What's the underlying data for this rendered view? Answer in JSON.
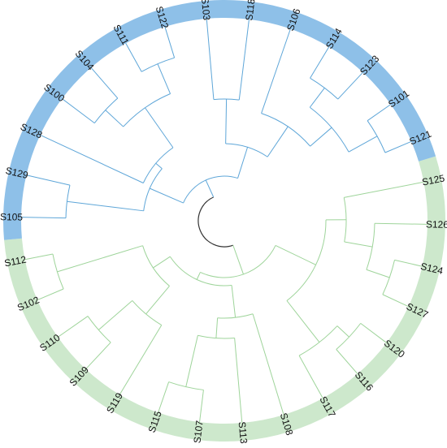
{
  "tree": {
    "colors": {
      "blue_band": "#8ec0e8",
      "green_band": "#cde8cc",
      "blue_branch": "#5ea6d8",
      "green_branch": "#9ed49a",
      "root_branch": "#333333"
    },
    "leaves": [
      {
        "label": "S125",
        "group": "green"
      },
      {
        "label": "S126",
        "group": "green"
      },
      {
        "label": "S124",
        "group": "green"
      },
      {
        "label": "S127",
        "group": "green"
      },
      {
        "label": "S120",
        "group": "green"
      },
      {
        "label": "S116",
        "group": "green"
      },
      {
        "label": "S117",
        "group": "green"
      },
      {
        "label": "S108",
        "group": "green"
      },
      {
        "label": "S113",
        "group": "green"
      },
      {
        "label": "S107",
        "group": "green"
      },
      {
        "label": "S115",
        "group": "green"
      },
      {
        "label": "S119",
        "group": "green"
      },
      {
        "label": "S109",
        "group": "green"
      },
      {
        "label": "S110",
        "group": "green"
      },
      {
        "label": "S102",
        "group": "green"
      },
      {
        "label": "S112",
        "group": "green"
      },
      {
        "label": "S105",
        "group": "blue"
      },
      {
        "label": "S129",
        "group": "blue"
      },
      {
        "label": "S128",
        "group": "blue"
      },
      {
        "label": "S100",
        "group": "blue"
      },
      {
        "label": "S104",
        "group": "blue"
      },
      {
        "label": "S111",
        "group": "blue"
      },
      {
        "label": "S122",
        "group": "blue"
      },
      {
        "label": "S103",
        "group": "blue"
      },
      {
        "label": "S118",
        "group": "blue"
      },
      {
        "label": "S106",
        "group": "blue"
      },
      {
        "label": "S114",
        "group": "blue"
      },
      {
        "label": "S123",
        "group": "blue"
      },
      {
        "label": "S101",
        "group": "blue"
      },
      {
        "label": "S121",
        "group": "blue"
      }
    ]
  }
}
